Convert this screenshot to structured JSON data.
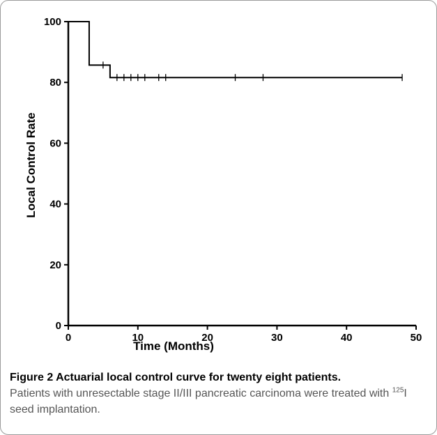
{
  "chart_data": {
    "type": "line",
    "xlabel": "Time (Months)",
    "ylabel": "Local Control Rate",
    "xlim": [
      0,
      50
    ],
    "ylim": [
      0,
      100
    ],
    "xticks": [
      0,
      10,
      20,
      30,
      40,
      50
    ],
    "yticks": [
      0,
      20,
      40,
      60,
      80,
      100
    ],
    "grid": false,
    "series": [
      {
        "steps": [
          [
            0,
            100
          ],
          [
            3,
            100
          ],
          [
            3,
            85.7
          ],
          [
            6,
            85.7
          ],
          [
            6,
            81.6
          ],
          [
            48,
            81.6
          ]
        ],
        "censored": [
          5,
          7,
          8,
          9,
          10,
          11,
          13,
          14,
          24,
          28,
          48
        ]
      }
    ]
  },
  "caption": {
    "title": "Figure 2 Actuarial local control curve for twenty eight patients.",
    "text_before": "Patients with unresectable stage II/III pancreatic carcinoma were treated with",
    "sup": "125",
    "text_after": "I seed implantation."
  }
}
